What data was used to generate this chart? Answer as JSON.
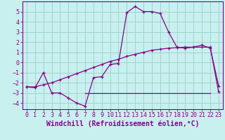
{
  "xlabel": "Windchill (Refroidissement éolien,°C)",
  "bg_color": "#c8f0ee",
  "grid_color": "#a0d4d0",
  "line_color": "#880088",
  "spine_color": "#880088",
  "xlim": [
    -0.5,
    23.5
  ],
  "ylim": [
    -4.6,
    6.0
  ],
  "yticks": [
    -4,
    -3,
    -2,
    -1,
    0,
    1,
    2,
    3,
    4,
    5
  ],
  "xticks": [
    0,
    1,
    2,
    3,
    4,
    5,
    6,
    7,
    8,
    9,
    10,
    11,
    12,
    13,
    14,
    15,
    16,
    17,
    18,
    19,
    20,
    21,
    22,
    23
  ],
  "curve1_x": [
    0,
    1,
    2,
    3,
    4,
    5,
    6,
    7,
    8,
    9,
    10,
    11,
    12,
    13,
    14,
    15,
    16,
    17,
    18,
    19,
    20,
    21,
    22,
    23
  ],
  "curve1_y": [
    -2.4,
    -2.5,
    -1.0,
    -3.0,
    -3.0,
    -3.5,
    -4.0,
    -4.3,
    -1.5,
    -1.4,
    -0.2,
    -0.1,
    4.9,
    5.5,
    5.0,
    5.0,
    4.8,
    3.0,
    1.5,
    1.4,
    1.5,
    1.7,
    1.4,
    -2.3
  ],
  "curve2_x": [
    0,
    1,
    2,
    3,
    4,
    5,
    6,
    7,
    8,
    9,
    10,
    11,
    12,
    13,
    14,
    15,
    16,
    17,
    18,
    19,
    20,
    21,
    22,
    23
  ],
  "curve2_y": [
    -2.4,
    -2.4,
    -2.2,
    -2.0,
    -1.7,
    -1.4,
    -1.1,
    -0.8,
    -0.5,
    -0.2,
    0.1,
    0.3,
    0.6,
    0.8,
    1.0,
    1.2,
    1.3,
    1.4,
    1.45,
    1.5,
    1.5,
    1.5,
    1.5,
    -2.9
  ],
  "curve3_x": [
    7,
    8,
    9,
    10,
    11,
    12,
    13,
    14,
    15,
    16,
    17,
    18,
    19,
    20,
    21,
    22
  ],
  "curve3_y": [
    -3.0,
    -3.0,
    -3.0,
    -3.0,
    -3.0,
    -3.0,
    -3.0,
    -3.0,
    -3.0,
    -3.0,
    -3.0,
    -3.0,
    -3.0,
    -3.0,
    -3.0,
    -3.0
  ],
  "tick_fontsize": 6.0,
  "label_fontsize": 7.0
}
